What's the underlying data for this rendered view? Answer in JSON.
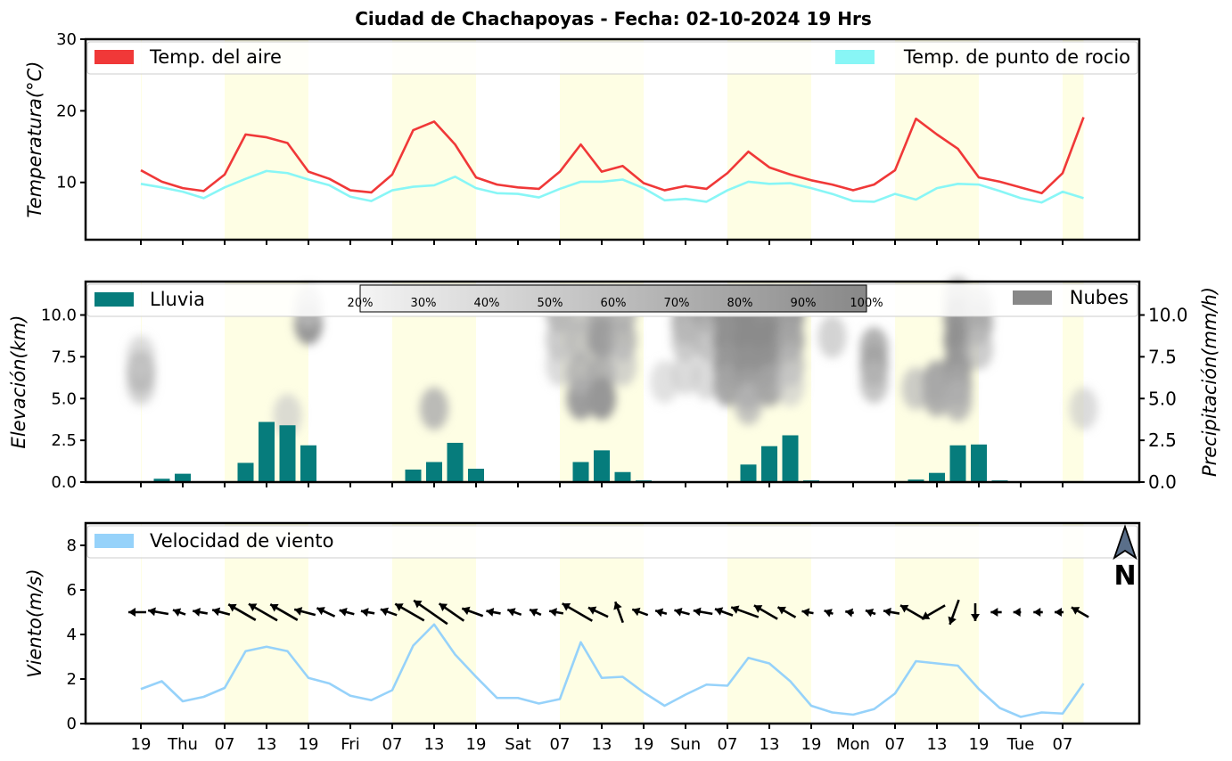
{
  "title": "Ciudad de Chachapoyas   -   Fecha: 02-10-2024 19 Hrs",
  "x_axis": {
    "tick_labels": [
      "19",
      "Thu",
      "07",
      "13",
      "19",
      "Fri",
      "07",
      "13",
      "19",
      "Sat",
      "07",
      "13",
      "19",
      "Sun",
      "07",
      "13",
      "19",
      "Mon",
      "07",
      "13",
      "19",
      "Tue",
      "07"
    ]
  },
  "daylight_bands": [
    [
      0,
      0.02
    ],
    [
      4,
      8
    ],
    [
      12,
      16
    ],
    [
      20,
      24
    ],
    [
      28,
      32
    ],
    [
      36,
      40
    ],
    [
      44,
      45
    ]
  ],
  "chart_data": [
    {
      "type": "line",
      "title": "Temperatura",
      "ylabel": "Temperatura(°C)",
      "ylim": [
        2,
        30
      ],
      "yticks": [
        10,
        20,
        30
      ],
      "legend": "top",
      "series": [
        {
          "name": "Temp. del aire",
          "color": "#f03838",
          "values": [
            11.7,
            10.1,
            9.2,
            8.8,
            11.1,
            16.7,
            16.3,
            15.5,
            11.5,
            10.5,
            8.9,
            8.6,
            11.1,
            17.3,
            18.5,
            15.3,
            10.7,
            9.7,
            9.3,
            9.1,
            11.5,
            15.3,
            11.5,
            12.3,
            9.9,
            8.9,
            9.5,
            9.1,
            11.3,
            14.3,
            12.1,
            11.1,
            10.3,
            9.7,
            8.9,
            9.7,
            11.7,
            18.9,
            16.7,
            14.7,
            10.7,
            10.1,
            9.3,
            8.5,
            11.3,
            19.1
          ]
        },
        {
          "name": "Temp. de punto de rocio",
          "color": "#88f6f6",
          "values": [
            9.8,
            9.3,
            8.7,
            7.8,
            9.3,
            10.5,
            11.6,
            11.3,
            10.4,
            9.6,
            8.0,
            7.4,
            8.9,
            9.4,
            9.6,
            10.8,
            9.2,
            8.5,
            8.4,
            7.9,
            9.1,
            10.1,
            10.1,
            10.4,
            9.2,
            7.5,
            7.7,
            7.3,
            8.9,
            10.1,
            9.8,
            9.9,
            9.2,
            8.4,
            7.4,
            7.3,
            8.4,
            7.6,
            9.2,
            9.8,
            9.7,
            8.8,
            7.8,
            7.2,
            8.7,
            7.8
          ]
        }
      ]
    },
    {
      "type": "bar",
      "title": "Lluvia y nubes",
      "ylabel": "Elevación(km)",
      "ylabel_right": "Precipitación(mm/h)",
      "ylim": [
        0,
        12
      ],
      "yticks": [
        0.0,
        2.5,
        5.0,
        7.5,
        10.0
      ],
      "series": [
        {
          "name": "Lluvia",
          "color": "#067c7c",
          "values": [
            0,
            0.2,
            0.5,
            0,
            0,
            1.15,
            3.6,
            3.4,
            2.2,
            0.05,
            0,
            0,
            0,
            0.75,
            1.2,
            2.35,
            0.8,
            0,
            0,
            0,
            0,
            1.2,
            1.9,
            0.6,
            0.1,
            0,
            0,
            0,
            0,
            1.05,
            2.15,
            2.8,
            0.1,
            0,
            0,
            0,
            0,
            0.15,
            0.55,
            2.2,
            2.25,
            0.1,
            0,
            0,
            0,
            0.05
          ]
        },
        {
          "name": "Nubes",
          "color": "#888888"
        }
      ],
      "cloud_colorbar": [
        "20%",
        "30%",
        "40%",
        "50%",
        "60%",
        "70%",
        "80%",
        "90%",
        "100%"
      ],
      "cloud_cells": [
        [
          0,
          6.6,
          0.55
        ],
        [
          0,
          5.9,
          0.35
        ],
        [
          0,
          7.5,
          0.3
        ],
        [
          8,
          9.5,
          0.7
        ],
        [
          8,
          10.5,
          0.4
        ],
        [
          7,
          4.0,
          0.3
        ],
        [
          14,
          4.4,
          0.5
        ],
        [
          20,
          10.2,
          0.5
        ],
        [
          20,
          8.5,
          0.4
        ],
        [
          20,
          7.0,
          0.3
        ],
        [
          21,
          10.2,
          0.4
        ],
        [
          21,
          8.5,
          0.45
        ],
        [
          21,
          5.0,
          0.65
        ],
        [
          21,
          6.5,
          0.5
        ],
        [
          22,
          10.0,
          0.55
        ],
        [
          22,
          8.6,
          0.65
        ],
        [
          22,
          6.5,
          0.55
        ],
        [
          22,
          5.0,
          0.7
        ],
        [
          23,
          10.2,
          0.5
        ],
        [
          23,
          8.5,
          0.5
        ],
        [
          23,
          7.0,
          0.35
        ],
        [
          25,
          6.0,
          0.25
        ],
        [
          26,
          9.5,
          0.55
        ],
        [
          26,
          8.5,
          0.4
        ],
        [
          26,
          6.5,
          0.3
        ],
        [
          27,
          10.2,
          0.6
        ],
        [
          27,
          8.5,
          0.45
        ],
        [
          27,
          6.2,
          0.3
        ],
        [
          28,
          10.0,
          0.75
        ],
        [
          28,
          8.5,
          0.75
        ],
        [
          28,
          7.0,
          0.7
        ],
        [
          28,
          5.8,
          0.6
        ],
        [
          29,
          10.0,
          0.8
        ],
        [
          29,
          8.5,
          0.8
        ],
        [
          29,
          7.0,
          0.75
        ],
        [
          29,
          5.6,
          0.65
        ],
        [
          29,
          4.7,
          0.45
        ],
        [
          30,
          10.2,
          0.75
        ],
        [
          30,
          8.5,
          0.8
        ],
        [
          30,
          7.0,
          0.75
        ],
        [
          30,
          5.8,
          0.6
        ],
        [
          31,
          10.0,
          0.65
        ],
        [
          31,
          8.5,
          0.6
        ],
        [
          31,
          7.0,
          0.45
        ],
        [
          31,
          5.8,
          0.3
        ],
        [
          33,
          8.7,
          0.35
        ],
        [
          35,
          8.0,
          0.55
        ],
        [
          35,
          7.0,
          0.6
        ],
        [
          35,
          6.0,
          0.45
        ],
        [
          37,
          5.6,
          0.4
        ],
        [
          38,
          6.0,
          0.6
        ],
        [
          38,
          5.2,
          0.55
        ],
        [
          39,
          11.0,
          0.5
        ],
        [
          39,
          9.8,
          0.7
        ],
        [
          39,
          8.5,
          0.75
        ],
        [
          39,
          7.0,
          0.7
        ],
        [
          39,
          5.8,
          0.6
        ],
        [
          39,
          4.9,
          0.5
        ],
        [
          40,
          10.5,
          0.45
        ],
        [
          40,
          9.5,
          0.55
        ],
        [
          40,
          8.0,
          0.4
        ],
        [
          45,
          4.4,
          0.3
        ]
      ]
    },
    {
      "type": "line",
      "title": "Viento",
      "ylabel": "Viento(m/s)",
      "ylim": [
        0,
        9
      ],
      "yticks": [
        0,
        2,
        4,
        6,
        8
      ],
      "north_label": "N",
      "series": [
        {
          "name": "Velocidad de viento",
          "color": "#96d2fa",
          "values": [
            1.55,
            1.9,
            1.0,
            1.2,
            1.6,
            3.25,
            3.45,
            3.25,
            2.05,
            1.8,
            1.25,
            1.05,
            1.5,
            3.5,
            4.45,
            3.1,
            2.1,
            1.15,
            1.15,
            0.9,
            1.1,
            3.65,
            2.05,
            2.1,
            1.4,
            0.8,
            1.3,
            1.75,
            1.7,
            2.95,
            2.7,
            1.9,
            0.8,
            0.5,
            0.4,
            0.65,
            1.35,
            2.8,
            2.7,
            2.6,
            1.55,
            0.7,
            0.3,
            0.5,
            0.45,
            1.8
          ]
        }
      ],
      "wind_direction_deg": [
        270,
        280,
        290,
        280,
        285,
        300,
        300,
        300,
        285,
        295,
        285,
        280,
        290,
        300,
        305,
        305,
        290,
        280,
        290,
        295,
        280,
        300,
        295,
        340,
        290,
        285,
        285,
        280,
        290,
        290,
        300,
        300,
        280,
        290,
        280,
        290,
        280,
        300,
        240,
        200,
        180,
        270,
        270,
        270,
        270,
        300
      ]
    }
  ]
}
